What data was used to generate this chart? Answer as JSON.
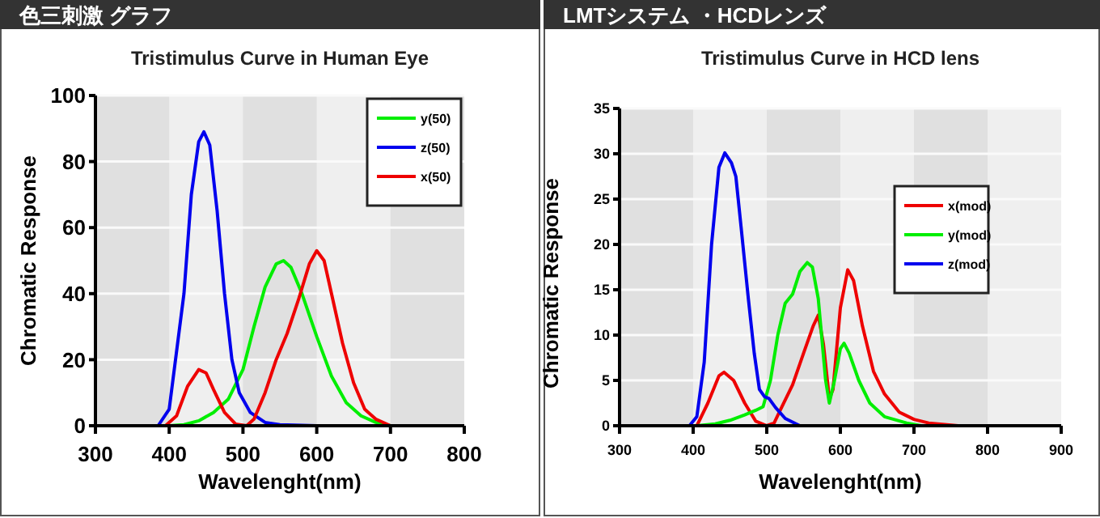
{
  "chart_data": [
    {
      "type": "line",
      "title": "色三刺激 グラフ",
      "subtitle": "Tristimulus Curve in Human Eye",
      "xlabel": "Wavelenght(nm)",
      "ylabel": "Chromatic Response",
      "xlim": [
        300,
        800
      ],
      "xticks": [
        300,
        400,
        500,
        600,
        700,
        800
      ],
      "ylim": [
        0,
        100
      ],
      "yticks": [
        0,
        20,
        40,
        60,
        80,
        100
      ],
      "grid": "y",
      "legend": "top right",
      "line_style": "solid",
      "marker": "none",
      "bands": [
        {
          "axis": "x",
          "from": 300,
          "to": 400,
          "color": "#e0e0e0"
        },
        {
          "axis": "x",
          "from": 500,
          "to": 600,
          "color": "#e0e0e0"
        },
        {
          "axis": "x",
          "from": 700,
          "to": 800,
          "color": "#e0e0e0"
        }
      ],
      "series": [
        {
          "name": "y(50)",
          "color": "#00ee00",
          "x": [
            400,
            420,
            440,
            460,
            480,
            500,
            515,
            530,
            545,
            555,
            565,
            580,
            600,
            620,
            640,
            660,
            680,
            700
          ],
          "values": [
            0,
            0.3,
            1.5,
            4,
            8,
            17,
            30,
            42,
            49,
            50,
            48,
            40,
            27,
            15,
            7,
            3,
            1,
            0
          ]
        },
        {
          "name": "z(50)",
          "color": "#0000ee",
          "x": [
            385,
            400,
            420,
            430,
            440,
            447,
            455,
            465,
            475,
            485,
            495,
            510,
            530,
            550,
            600,
            700
          ],
          "values": [
            0,
            5,
            40,
            70,
            86,
            89,
            85,
            65,
            40,
            20,
            10,
            4,
            1,
            0.3,
            0,
            0
          ]
        },
        {
          "name": "x(50)",
          "color": "#ee0000",
          "x": [
            395,
            410,
            425,
            440,
            450,
            460,
            475,
            490,
            505,
            515,
            530,
            545,
            560,
            575,
            590,
            600,
            610,
            620,
            635,
            650,
            665,
            680,
            700
          ],
          "values": [
            0,
            3,
            12,
            17,
            16,
            11,
            4,
            0.5,
            0,
            2,
            10,
            20,
            28,
            38,
            49,
            53,
            50,
            40,
            25,
            13,
            5,
            2,
            0
          ]
        }
      ]
    },
    {
      "type": "line",
      "title": "LMTシステム ・HCDレンズ",
      "subtitle": "Tristimulus Curve in HCD lens",
      "xlabel": "Wavelenght(nm)",
      "ylabel": "Chromatic Response",
      "xlim": [
        300,
        900
      ],
      "xticks": [
        300,
        400,
        500,
        600,
        700,
        800,
        900
      ],
      "ylim": [
        0,
        35
      ],
      "yticks": [
        0,
        5,
        10,
        15,
        20,
        25,
        30,
        35
      ],
      "grid": "y",
      "legend": "right",
      "line_style": "solid",
      "marker": "none",
      "bands": [
        {
          "axis": "x",
          "from": 300,
          "to": 400,
          "color": "#e0e0e0"
        },
        {
          "axis": "x",
          "from": 500,
          "to": 600,
          "color": "#e0e0e0"
        },
        {
          "axis": "x",
          "from": 700,
          "to": 800,
          "color": "#e0e0e0"
        }
      ],
      "series": [
        {
          "name": "x(mod)",
          "color": "#ee0000",
          "x": [
            405,
            420,
            435,
            442,
            455,
            470,
            485,
            500,
            510,
            520,
            535,
            550,
            563,
            570,
            577,
            585,
            590,
            600,
            610,
            618,
            630,
            645,
            660,
            680,
            700,
            720,
            760
          ],
          "values": [
            0,
            2.5,
            5.5,
            5.9,
            5,
            2.5,
            0.5,
            0,
            0.3,
            2,
            4.5,
            8,
            11,
            12.2,
            9,
            3,
            4,
            13,
            17.2,
            16,
            11,
            6,
            3.5,
            1.5,
            0.7,
            0.3,
            0
          ]
        },
        {
          "name": "y(mod)",
          "color": "#00ee00",
          "x": [
            405,
            430,
            450,
            470,
            485,
            495,
            505,
            515,
            525,
            535,
            545,
            555,
            562,
            570,
            580,
            585,
            592,
            600,
            605,
            612,
            625,
            640,
            660,
            690,
            710
          ],
          "values": [
            0,
            0.2,
            0.6,
            1.2,
            1.7,
            2.1,
            5,
            10,
            13.5,
            14.5,
            17,
            18,
            17.5,
            14,
            5,
            2.5,
            5,
            8.5,
            9.1,
            8,
            5,
            2.5,
            1,
            0.3,
            0
          ]
        },
        {
          "name": "z(mod)",
          "color": "#0000ee",
          "x": [
            395,
            405,
            415,
            425,
            435,
            443,
            452,
            458,
            465,
            475,
            483,
            490,
            497,
            503,
            512,
            525,
            545
          ],
          "values": [
            0,
            1,
            7,
            20,
            28.5,
            30.1,
            29,
            27.5,
            22,
            14,
            8,
            4,
            3.2,
            3,
            2,
            0.8,
            0
          ]
        }
      ]
    }
  ]
}
